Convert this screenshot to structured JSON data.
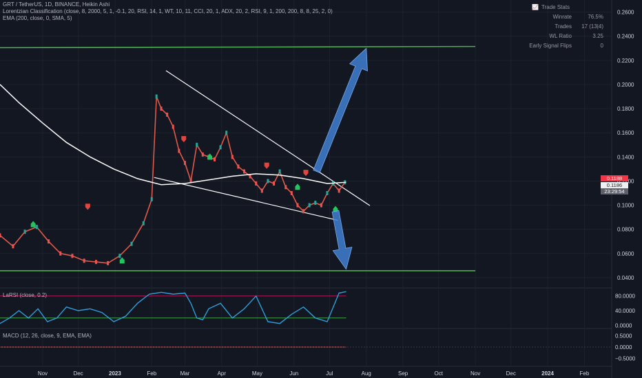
{
  "header": {
    "line1": "GRT / TetherUS, 1D, BINANCE, Heikin Ashi",
    "line2": "Lorentzian Classification (close, 8, 2000, 5, 1, -0.1, 20, RSI, 14, 1, WT, 10, 11, CCI, 20, 1, ADX, 20, 2, RSI, 9, 1, 200, 200, 8, 8, 25, 2, 0)",
    "line3": "EMA (200, close, 0, SMA, 5)"
  },
  "trade_stats": {
    "title": "Trade Stats",
    "rows": [
      {
        "key": "Winrate",
        "value": "76.5%"
      },
      {
        "key": "Trades",
        "value": "17 (13|4)"
      },
      {
        "key": "WL Ratio",
        "value": "3.25"
      },
      {
        "key": "Early Signal Flips",
        "value": "0"
      }
    ]
  },
  "price_badges": {
    "red": "0.1188",
    "white": "0.1186",
    "timer": "23:29:54"
  },
  "colors": {
    "bg": "#131722",
    "green": "#4caf50",
    "white": "#ffffff",
    "red": "#f23645",
    "blue": "#3f7fd0",
    "rsi": "#2f9fd9"
  },
  "chart_data": [
    {
      "type": "line",
      "title": "GRT / TetherUS, 1D, BINANCE, Heikin Ashi",
      "y_ticks": [
        0.04,
        0.06,
        0.08,
        0.1,
        0.12,
        0.14,
        0.16,
        0.18,
        0.2,
        0.22,
        0.24,
        0.26
      ],
      "y_tick_labels": [
        "0.0400",
        "0.0600",
        "0.0800",
        "0.1000",
        "0.1200",
        "0.1400",
        "0.1600",
        "0.1800",
        "0.2000",
        "0.2200",
        "0.2400",
        "0.2600"
      ],
      "ylim": [
        0.032,
        0.27
      ],
      "x_ticks": [
        "Nov",
        "Dec",
        "2023",
        "Feb",
        "Mar",
        "Apr",
        "May",
        "Jun",
        "Jul",
        "Aug",
        "Sep",
        "Oct",
        "Nov",
        "Dec",
        "2024",
        "Feb"
      ],
      "x_tick_days": [
        0,
        30,
        61,
        92,
        120,
        151,
        181,
        212,
        242,
        273,
        304,
        334,
        365,
        395,
        426,
        457
      ],
      "xlim": [
        -36,
        480
      ],
      "series": [
        {
          "values_x": [
            -36,
            -25,
            -15,
            -5,
            5,
            15,
            25,
            35,
            45,
            55,
            65,
            75,
            85,
            92,
            96,
            100,
            105,
            110,
            115,
            120,
            125,
            130,
            135,
            140,
            145,
            150,
            155,
            160,
            165,
            170,
            175,
            180,
            185,
            190,
            195,
            200,
            205,
            210,
            215,
            220,
            225,
            230,
            235,
            240,
            245,
            250,
            255
          ],
          "values_y": [
            0.075,
            0.066,
            0.078,
            0.082,
            0.07,
            0.06,
            0.058,
            0.054,
            0.053,
            0.052,
            0.058,
            0.068,
            0.085,
            0.105,
            0.19,
            0.18,
            0.175,
            0.165,
            0.145,
            0.135,
            0.12,
            0.15,
            0.142,
            0.14,
            0.138,
            0.148,
            0.16,
            0.14,
            0.132,
            0.128,
            0.124,
            0.118,
            0.112,
            0.12,
            0.118,
            0.128,
            0.115,
            0.11,
            0.1,
            0.095,
            0.1,
            0.102,
            0.1,
            0.11,
            0.118,
            0.112,
            0.119
          ]
        },
        {
          "name": "EMA (200, close, 0, SMA, 5)",
          "values_x": [
            -36,
            -20,
            0,
            20,
            40,
            60,
            80,
            100,
            120,
            140,
            160,
            180,
            200,
            220,
            240,
            256
          ],
          "values_y": [
            0.2,
            0.185,
            0.168,
            0.152,
            0.14,
            0.13,
            0.122,
            0.117,
            0.118,
            0.121,
            0.124,
            0.126,
            0.125,
            0.122,
            0.118,
            0.119
          ]
        }
      ],
      "signals": {
        "buy": [
          {
            "x": -8,
            "y": 0.084
          },
          {
            "x": 67,
            "y": 0.054
          },
          {
            "x": 141,
            "y": 0.14
          },
          {
            "x": 215,
            "y": 0.115
          },
          {
            "x": 247,
            "y": 0.0965
          }
        ],
        "sell": [
          {
            "x": 38,
            "y": 0.099
          },
          {
            "x": 119,
            "y": 0.155
          },
          {
            "x": 189,
            "y": 0.133
          },
          {
            "x": 222,
            "y": 0.127
          }
        ]
      },
      "trendlines": [
        {
          "color": "green",
          "x": [
            -36,
            365
          ],
          "y": [
            0.2305,
            0.2315
          ]
        },
        {
          "color": "green",
          "x": [
            -36,
            365
          ],
          "y": [
            0.0457,
            0.0457
          ]
        },
        {
          "color": "white",
          "x": [
            104,
            276
          ],
          "y": [
            0.2115,
            0.0997
          ]
        },
        {
          "color": "white",
          "x": [
            94,
            249
          ],
          "y": [
            0.123,
            0.0875
          ]
        }
      ],
      "arrows": [
        {
          "direction": "up",
          "x_from": 231,
          "y_from": 0.128,
          "x_to": 273,
          "y_to": 0.23
        },
        {
          "direction": "down",
          "x_from": 247,
          "y_from": 0.095,
          "x_to": 256,
          "y_to": 0.047
        }
      ]
    },
    {
      "type": "line",
      "title": "LaRSI (close, 0.2)",
      "y_ticks": [
        0,
        40,
        80
      ],
      "y_tick_labels": [
        "0.0000",
        "40.0000",
        "80.0000"
      ],
      "ylim": [
        -5,
        100
      ],
      "hlines": [
        80,
        20
      ],
      "series": [
        {
          "values_x": [
            -36,
            -28,
            -20,
            -12,
            -4,
            4,
            12,
            20,
            30,
            40,
            50,
            60,
            70,
            80,
            90,
            100,
            110,
            120,
            125,
            130,
            135,
            140,
            150,
            160,
            170,
            180,
            190,
            200,
            210,
            220,
            230,
            240,
            250,
            256
          ],
          "values_y": [
            5,
            20,
            40,
            20,
            45,
            10,
            20,
            50,
            40,
            45,
            35,
            10,
            25,
            60,
            85,
            90,
            85,
            88,
            60,
            20,
            15,
            45,
            60,
            20,
            45,
            80,
            10,
            5,
            30,
            50,
            20,
            10,
            88,
            92
          ]
        }
      ]
    },
    {
      "type": "line",
      "title": "MACD (12, 26, close, 9, EMA, EMA)",
      "y_ticks": [
        0.5,
        0,
        -0.5
      ],
      "y_tick_labels": [
        "0.5000",
        "0.0000",
        "−0.5000"
      ],
      "ylim": [
        -0.75,
        0.75
      ],
      "series": [
        {
          "values_x": [
            -36,
            256
          ],
          "values_y": [
            0,
            0
          ]
        }
      ]
    }
  ]
}
